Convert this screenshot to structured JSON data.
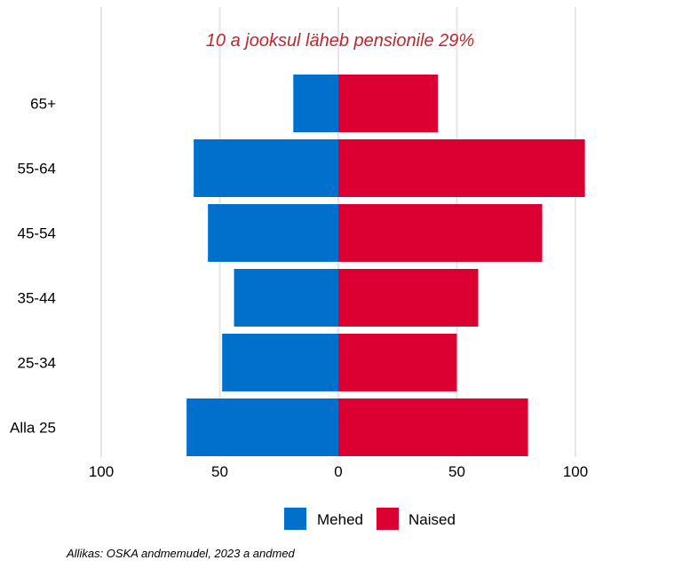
{
  "chart_data": {
    "type": "bar",
    "orientation": "horizontal-population-pyramid",
    "title": "10 a jooksul läheb pensionile 29%",
    "title_color": "#c0272d",
    "categories": [
      "65+",
      "55-64",
      "45-54",
      "35-44",
      "25-34",
      "Alla 25"
    ],
    "series": [
      {
        "name": "Mehed",
        "color": "#0070cc",
        "side": "left",
        "values": [
          19,
          61,
          55,
          44,
          49,
          64
        ]
      },
      {
        "name": "Naised",
        "color": "#dc0032",
        "side": "right",
        "values": [
          42,
          104,
          86,
          59,
          50,
          80
        ]
      }
    ],
    "xlim": [
      -100,
      100
    ],
    "xticks": [
      -100,
      -50,
      0,
      50,
      100
    ],
    "xtick_labels": [
      "100",
      "50",
      "0",
      "50",
      "100"
    ],
    "grid": true,
    "legend_position": "bottom"
  },
  "source_note": "Allikas: OSKA andmemudel, 2023 a andmed"
}
